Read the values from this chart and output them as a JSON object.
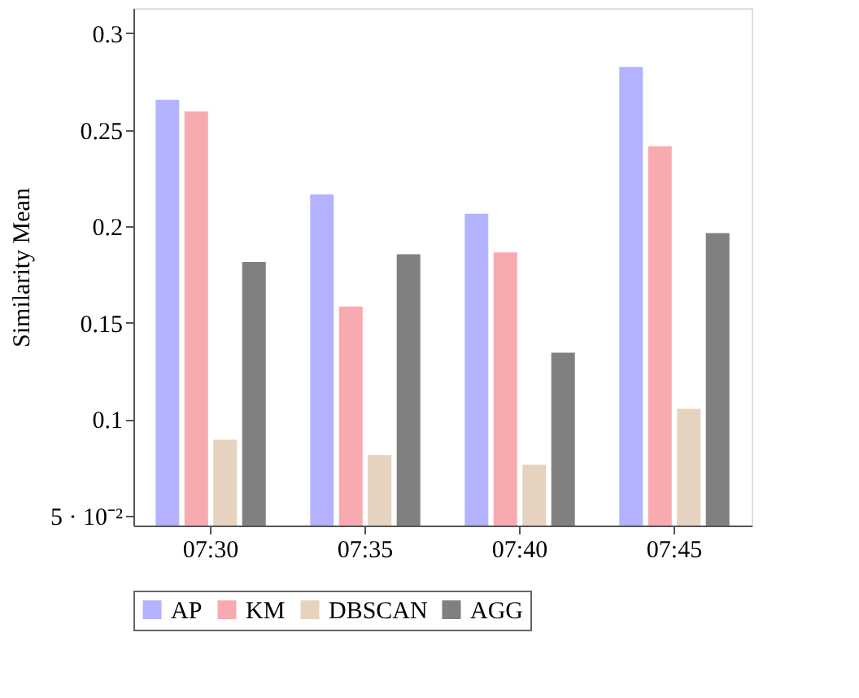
{
  "chart_data": {
    "type": "bar",
    "ylabel": "Similarity Mean",
    "categories": [
      "07:30",
      "07:35",
      "07:40",
      "07:45"
    ],
    "series": [
      {
        "name": "AP",
        "color": "#b3b3ff",
        "values": [
          0.265,
          0.216,
          0.206,
          0.282
        ]
      },
      {
        "name": "KM",
        "color": "#f9aab0",
        "values": [
          0.259,
          0.158,
          0.186,
          0.241
        ]
      },
      {
        "name": "DBSCAN",
        "color": "#e6d3bf",
        "values": [
          0.089,
          0.081,
          0.076,
          0.105
        ]
      },
      {
        "name": "AGG",
        "color": "#808080",
        "values": [
          0.181,
          0.185,
          0.134,
          0.196
        ]
      }
    ],
    "ylim": [
      0.045,
      0.313
    ],
    "yticks": [
      {
        "value": 0.05,
        "label": "5 · 10⁻²"
      },
      0.1,
      0.15,
      0.2,
      0.25,
      0.3
    ],
    "grid": false,
    "legend": "bottom"
  }
}
